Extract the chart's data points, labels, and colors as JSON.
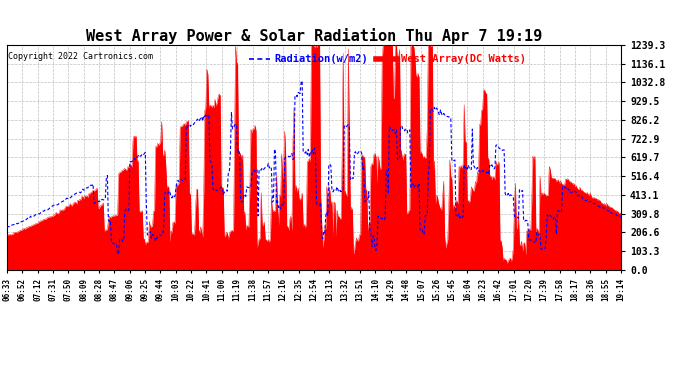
{
  "title": "West Array Power & Solar Radiation Thu Apr 7 19:19",
  "copyright": "Copyright 2022 Cartronics.com",
  "legend_radiation": "Radiation(w/m2)",
  "legend_west": "West Array(DC Watts)",
  "ymin": 0.0,
  "ymax": 1239.3,
  "yticks": [
    0.0,
    103.3,
    206.6,
    309.8,
    413.1,
    516.4,
    619.7,
    722.9,
    826.2,
    929.5,
    1032.8,
    1136.1,
    1239.3
  ],
  "bg_color": "#ffffff",
  "plot_bg_color": "#ffffff",
  "grid_color": "#b0b0b0",
  "red_color": "#ff0000",
  "blue_color": "#0000ff",
  "title_color": "#000000",
  "copyright_color": "#000000",
  "xtick_labels": [
    "06:33",
    "06:52",
    "07:12",
    "07:31",
    "07:50",
    "08:09",
    "08:28",
    "08:47",
    "09:06",
    "09:25",
    "09:44",
    "10:03",
    "10:22",
    "10:41",
    "11:00",
    "11:19",
    "11:38",
    "11:57",
    "12:16",
    "12:35",
    "12:54",
    "13:13",
    "13:32",
    "13:51",
    "14:10",
    "14:29",
    "14:48",
    "15:07",
    "15:26",
    "15:45",
    "16:04",
    "16:23",
    "16:42",
    "17:01",
    "17:20",
    "17:39",
    "17:58",
    "18:17",
    "18:36",
    "18:55",
    "19:14"
  ],
  "figwidth": 6.9,
  "figheight": 3.75,
  "dpi": 100
}
